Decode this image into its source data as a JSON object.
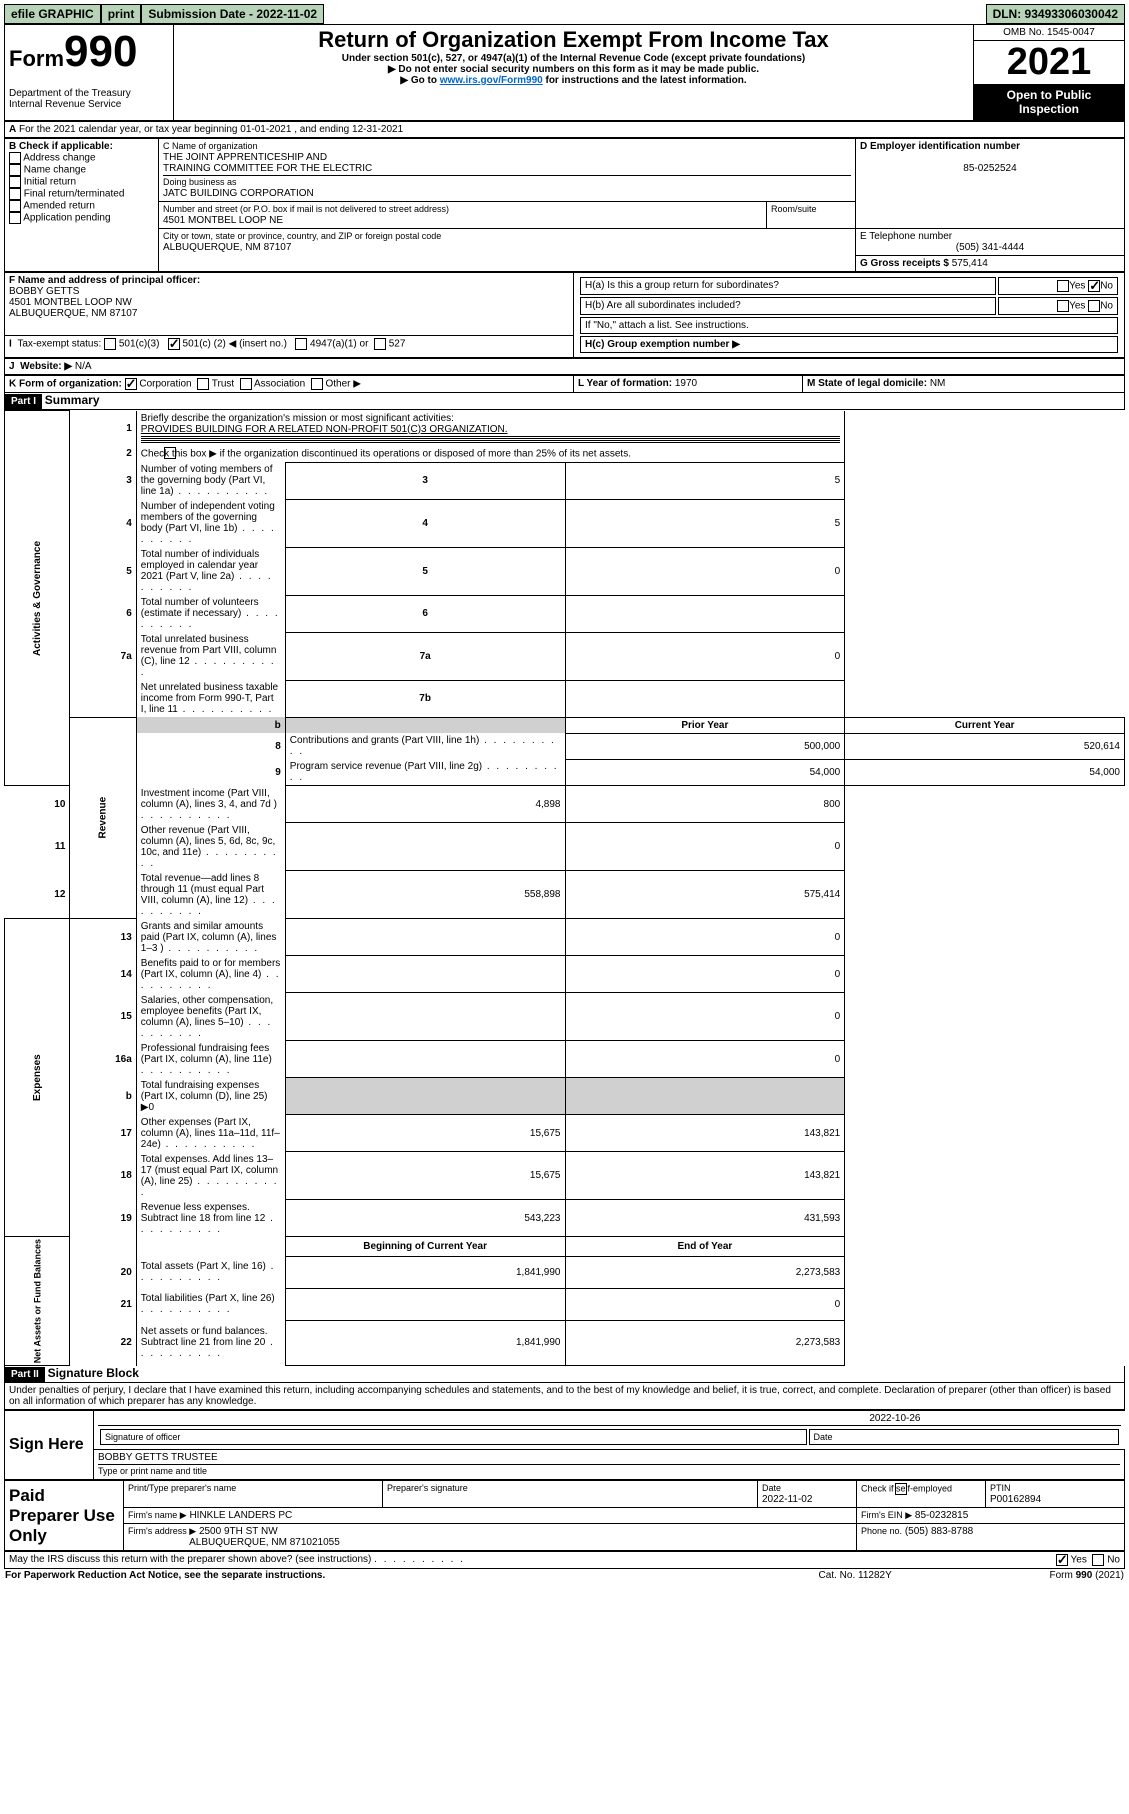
{
  "topbar": {
    "efile": "efile GRAPHIC",
    "print": "print",
    "submission_label": "Submission Date - 2022-11-02",
    "dln": "DLN: 93493306030042"
  },
  "header": {
    "form_prefix": "Form",
    "form_number": "990",
    "dept": "Department of the Treasury",
    "irs": "Internal Revenue Service",
    "title": "Return of Organization Exempt From Income Tax",
    "sub1": "Under section 501(c), 527, or 4947(a)(1) of the Internal Revenue Code (except private foundations)",
    "sub2": "▶ Do not enter social security numbers on this form as it may be made public.",
    "sub3_pre": "▶ Go to ",
    "sub3_link": "www.irs.gov/Form990",
    "sub3_post": " for instructions and the latest information.",
    "omb": "OMB No. 1545-0047",
    "year": "2021",
    "open": "Open to Public Inspection"
  },
  "period": {
    "line": "For the 2021 calendar year, or tax year beginning 01-01-2021      , and ending 12-31-2021",
    "a_label": "A"
  },
  "boxB": {
    "label": "B Check if applicable:",
    "items": [
      "Address change",
      "Name change",
      "Initial return",
      "Final return/terminated",
      "Amended return",
      "Application pending"
    ]
  },
  "boxC": {
    "label": "C Name of organization",
    "name1": "THE JOINT APPRENTICESHIP AND",
    "name2": "TRAINING COMMITTEE FOR THE ELECTRIC",
    "dba_label": "Doing business as",
    "dba": "JATC BUILDING CORPORATION",
    "street_label": "Number and street (or P.O. box if mail is not delivered to street address)",
    "room_label": "Room/suite",
    "street": "4501 MONTBEL LOOP NE",
    "city_label": "City or town, state or province, country, and ZIP or foreign postal code",
    "city": "ALBUQUERQUE, NM  87107"
  },
  "boxD": {
    "label": "D Employer identification number",
    "value": "85-0252524"
  },
  "boxE": {
    "label": "E Telephone number",
    "value": "(505) 341-4444"
  },
  "boxG": {
    "label": "G Gross receipts $",
    "value": "575,414"
  },
  "boxF": {
    "label": "F Name and address of principal officer:",
    "name": "BOBBY GETTS",
    "street": "4501 MONTBEL LOOP NW",
    "city": "ALBUQUERQUE, NM  87107"
  },
  "boxH": {
    "ha_label": "H(a)  Is this a group return for subordinates?",
    "hb_label": "H(b)  Are all subordinates included?",
    "hb_note": "If \"No,\" attach a list. See instructions.",
    "hc_label": "H(c)  Group exemption number ▶",
    "yes": "Yes",
    "no": "No"
  },
  "boxI": {
    "label": "Tax-exempt status:",
    "c3": "501(c)(3)",
    "c_pre": "501(c) (",
    "c_num": "2",
    "c_post": ") ◀ (insert no.)",
    "a4947": "4947(a)(1) or",
    "s527": "527"
  },
  "boxJ": {
    "label": "Website: ▶",
    "value": "N/A"
  },
  "boxK": {
    "label": "K Form of organization:",
    "corp": "Corporation",
    "trust": "Trust",
    "assoc": "Association",
    "other": "Other ▶"
  },
  "boxL": {
    "label": "L Year of formation:",
    "value": "1970"
  },
  "boxM": {
    "label": "M State of legal domicile:",
    "value": "NM"
  },
  "part1": {
    "header": "Part I",
    "title": "Summary",
    "line1_label": "Briefly describe the organization's mission or most significant activities:",
    "line1_text": "PROVIDES BUILDING FOR A RELATED NON-PROFIT 501(C)3 ORGANIZATION.",
    "line2": "Check this box ▶      if the organization discontinued its operations or disposed of more than 25% of its net assets.",
    "sections": {
      "governance": "Activities & Governance",
      "revenue": "Revenue",
      "expenses": "Expenses",
      "netassets": "Net Assets or Fund Balances"
    },
    "col_prior": "Prior Year",
    "col_current": "Current Year",
    "col_begin": "Beginning of Current Year",
    "col_end": "End of Year",
    "rows_gov": [
      {
        "n": "3",
        "d": "Number of voting members of the governing body (Part VI, line 1a)",
        "box": "3",
        "v": "5"
      },
      {
        "n": "4",
        "d": "Number of independent voting members of the governing body (Part VI, line 1b)",
        "box": "4",
        "v": "5"
      },
      {
        "n": "5",
        "d": "Total number of individuals employed in calendar year 2021 (Part V, line 2a)",
        "box": "5",
        "v": "0"
      },
      {
        "n": "6",
        "d": "Total number of volunteers (estimate if necessary)",
        "box": "6",
        "v": ""
      },
      {
        "n": "7a",
        "d": "Total unrelated business revenue from Part VIII, column (C), line 12",
        "box": "7a",
        "v": "0"
      },
      {
        "n": "",
        "d": "Net unrelated business taxable income from Form 990-T, Part I, line 11",
        "box": "7b",
        "v": ""
      }
    ],
    "rows_rev": [
      {
        "n": "8",
        "d": "Contributions and grants (Part VIII, line 1h)",
        "p": "500,000",
        "c": "520,614"
      },
      {
        "n": "9",
        "d": "Program service revenue (Part VIII, line 2g)",
        "p": "54,000",
        "c": "54,000"
      },
      {
        "n": "10",
        "d": "Investment income (Part VIII, column (A), lines 3, 4, and 7d )",
        "p": "4,898",
        "c": "800"
      },
      {
        "n": "11",
        "d": "Other revenue (Part VIII, column (A), lines 5, 6d, 8c, 9c, 10c, and 11e)",
        "p": "",
        "c": "0"
      },
      {
        "n": "12",
        "d": "Total revenue—add lines 8 through 11 (must equal Part VIII, column (A), line 12)",
        "p": "558,898",
        "c": "575,414"
      }
    ],
    "rows_exp": [
      {
        "n": "13",
        "d": "Grants and similar amounts paid (Part IX, column (A), lines 1–3 )",
        "p": "",
        "c": "0"
      },
      {
        "n": "14",
        "d": "Benefits paid to or for members (Part IX, column (A), line 4)",
        "p": "",
        "c": "0"
      },
      {
        "n": "15",
        "d": "Salaries, other compensation, employee benefits (Part IX, column (A), lines 5–10)",
        "p": "",
        "c": "0"
      },
      {
        "n": "16a",
        "d": "Professional fundraising fees (Part IX, column (A), line 11e)",
        "p": "",
        "c": "0"
      },
      {
        "n": "b",
        "d": "Total fundraising expenses (Part IX, column (D), line 25) ▶0",
        "grey": true
      },
      {
        "n": "17",
        "d": "Other expenses (Part IX, column (A), lines 11a–11d, 11f–24e)",
        "p": "15,675",
        "c": "143,821"
      },
      {
        "n": "18",
        "d": "Total expenses. Add lines 13–17 (must equal Part IX, column (A), line 25)",
        "p": "15,675",
        "c": "143,821"
      },
      {
        "n": "19",
        "d": "Revenue less expenses. Subtract line 18 from line 12",
        "p": "543,223",
        "c": "431,593"
      }
    ],
    "rows_net": [
      {
        "n": "20",
        "d": "Total assets (Part X, line 16)",
        "p": "1,841,990",
        "c": "2,273,583"
      },
      {
        "n": "21",
        "d": "Total liabilities (Part X, line 26)",
        "p": "",
        "c": "0"
      },
      {
        "n": "22",
        "d": "Net assets or fund balances. Subtract line 21 from line 20",
        "p": "1,841,990",
        "c": "2,273,583"
      }
    ]
  },
  "part2": {
    "header": "Part II",
    "title": "Signature Block",
    "penalty": "Under penalties of perjury, I declare that I have examined this return, including accompanying schedules and statements, and to the best of my knowledge and belief, it is true, correct, and complete. Declaration of preparer (other than officer) is based on all information of which preparer has any knowledge.",
    "sign_here": "Sign Here",
    "sig_officer": "Signature of officer",
    "sig_date": "Date",
    "sig_date_val": "2022-10-26",
    "officer_name": "BOBBY GETTS  TRUSTEE",
    "type_name": "Type or print name and title",
    "paid": "Paid Preparer Use Only",
    "prep_name_label": "Print/Type preparer's name",
    "prep_sig_label": "Preparer's signature",
    "prep_date_label": "Date",
    "prep_date_val": "2022-11-02",
    "check_if": "Check         if self-employed",
    "ptin_label": "PTIN",
    "ptin": "P00162894",
    "firm_name_label": "Firm's name      ▶",
    "firm_name": "HINKLE LANDERS PC",
    "firm_ein_label": "Firm's EIN ▶",
    "firm_ein": "85-0232815",
    "firm_addr_label": "Firm's address ▶",
    "firm_addr1": "2500 9TH ST NW",
    "firm_addr2": "ALBUQUERQUE, NM  871021055",
    "firm_phone_label": "Phone no.",
    "firm_phone": "(505) 883-8788",
    "may_irs": "May the IRS discuss this return with the preparer shown above? (see instructions)",
    "footer_left": "For Paperwork Reduction Act Notice, see the separate instructions.",
    "footer_mid": "Cat. No. 11282Y",
    "footer_right": "Form 990 (2021)"
  }
}
